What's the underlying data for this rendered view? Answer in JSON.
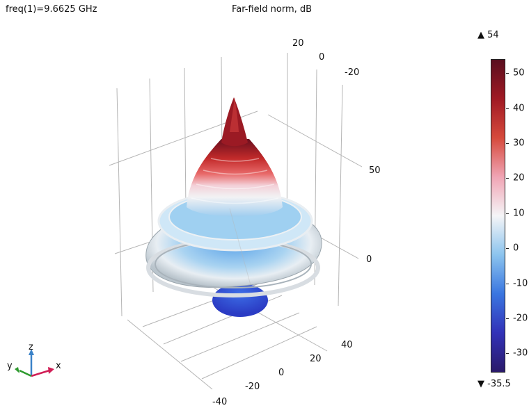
{
  "header": {
    "frequency_text": "freq(1)=9.6625 GHz",
    "plot_title": "Far-field norm, dB"
  },
  "colorbar": {
    "max_label": "▲ 54",
    "min_label": "▼ -35.5",
    "ticks": [
      "50",
      "40",
      "30",
      "20",
      "10",
      "0",
      "-10",
      "-20",
      "-30"
    ],
    "tick_values": [
      50,
      40,
      30,
      20,
      10,
      0,
      -10,
      -20,
      -30
    ],
    "range": [
      -35.5,
      54
    ],
    "colors": [
      "#5a0f1f",
      "#a01a24",
      "#d64a3c",
      "#f0a4b4",
      "#f5f5f7",
      "#8cc4ee",
      "#3a76e0",
      "#3232b8",
      "#2a1a6a"
    ]
  },
  "axes": {
    "top_back_ticks": [
      "20",
      "0",
      "-20"
    ],
    "right_z_ticks": [
      "50",
      "0"
    ],
    "bottom_x_ticks": [
      "40",
      "20",
      "0",
      "-20",
      "-40"
    ]
  },
  "triad": {
    "x": "x",
    "y": "y",
    "z": "z"
  }
}
